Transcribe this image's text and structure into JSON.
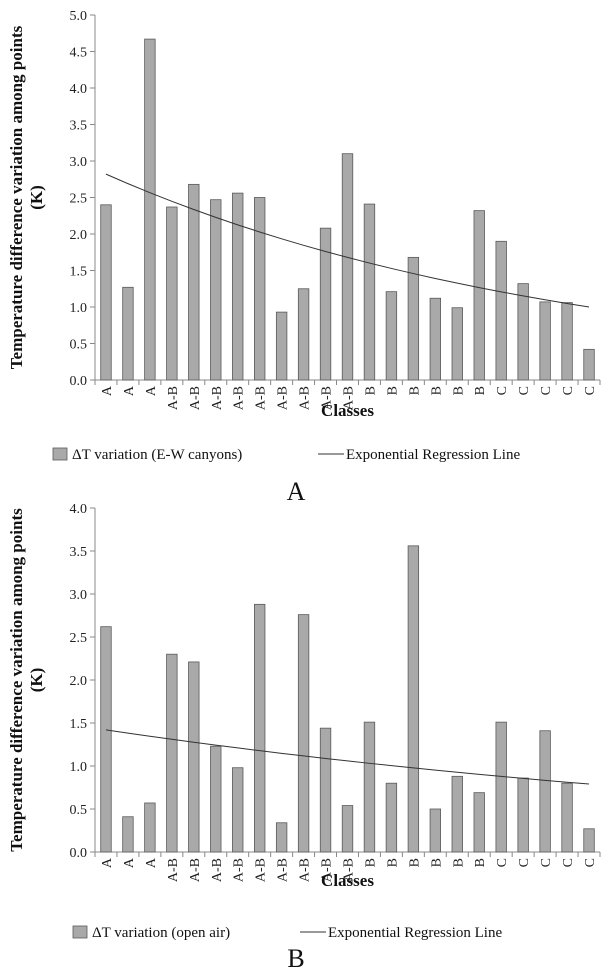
{
  "chart_data": [
    {
      "type": "bar",
      "panel_label": "A",
      "categories": [
        "A",
        "A",
        "A",
        "A-B",
        "A-B",
        "A-B",
        "A-B",
        "A-B",
        "A-B",
        "A-B",
        "A-B",
        "A-B",
        "B",
        "B",
        "B",
        "B",
        "B",
        "B",
        "C",
        "C",
        "C",
        "C",
        "C"
      ],
      "series": [
        {
          "name": "ΔT variation (E-W canyons)",
          "values": [
            2.4,
            1.27,
            4.67,
            2.37,
            2.68,
            2.47,
            2.56,
            2.5,
            0.93,
            1.25,
            2.08,
            3.1,
            2.41,
            1.21,
            1.68,
            1.12,
            0.99,
            2.32,
            1.9,
            1.32,
            1.07,
            1.06,
            0.42
          ],
          "color": "#a9a9a9"
        }
      ],
      "trendline": {
        "name": "Exponential Regression Line",
        "type": "exponential",
        "start": 2.82,
        "end": 1.0
      },
      "xlabel": "Classes",
      "ylabel": "Temperature difference variation among points (K)",
      "ylim": [
        0,
        5
      ],
      "yticks": [
        "0.0",
        "0.5",
        "1.0",
        "1.5",
        "2.0",
        "2.5",
        "3.0",
        "3.5",
        "4.0",
        "4.5",
        "5.0"
      ],
      "legend_position": "bottom"
    },
    {
      "type": "bar",
      "panel_label": "B",
      "categories": [
        "A",
        "A",
        "A",
        "A-B",
        "A-B",
        "A-B",
        "A-B",
        "A-B",
        "A-B",
        "A-B",
        "A-B",
        "A-B",
        "B",
        "B",
        "B",
        "B",
        "B",
        "B",
        "C",
        "C",
        "C",
        "C",
        "C"
      ],
      "series": [
        {
          "name": "ΔT variation (open air)",
          "values": [
            2.62,
            0.41,
            0.57,
            2.3,
            2.21,
            1.23,
            0.98,
            2.88,
            0.34,
            2.76,
            1.44,
            0.54,
            1.51,
            0.8,
            3.56,
            0.5,
            0.88,
            0.69,
            1.51,
            0.86,
            1.41,
            0.8,
            0.27
          ],
          "color": "#a9a9a9"
        }
      ],
      "trendline": {
        "name": "Exponential Regression Line",
        "type": "exponential",
        "start": 1.42,
        "end": 0.79
      },
      "xlabel": "Classes",
      "ylabel": "Temperature difference variation among points (K)",
      "ylim": [
        0,
        4
      ],
      "yticks": [
        "0.0",
        "0.5",
        "1.0",
        "1.5",
        "2.0",
        "2.5",
        "3.0",
        "3.5",
        "4.0"
      ],
      "legend_position": "bottom"
    }
  ]
}
